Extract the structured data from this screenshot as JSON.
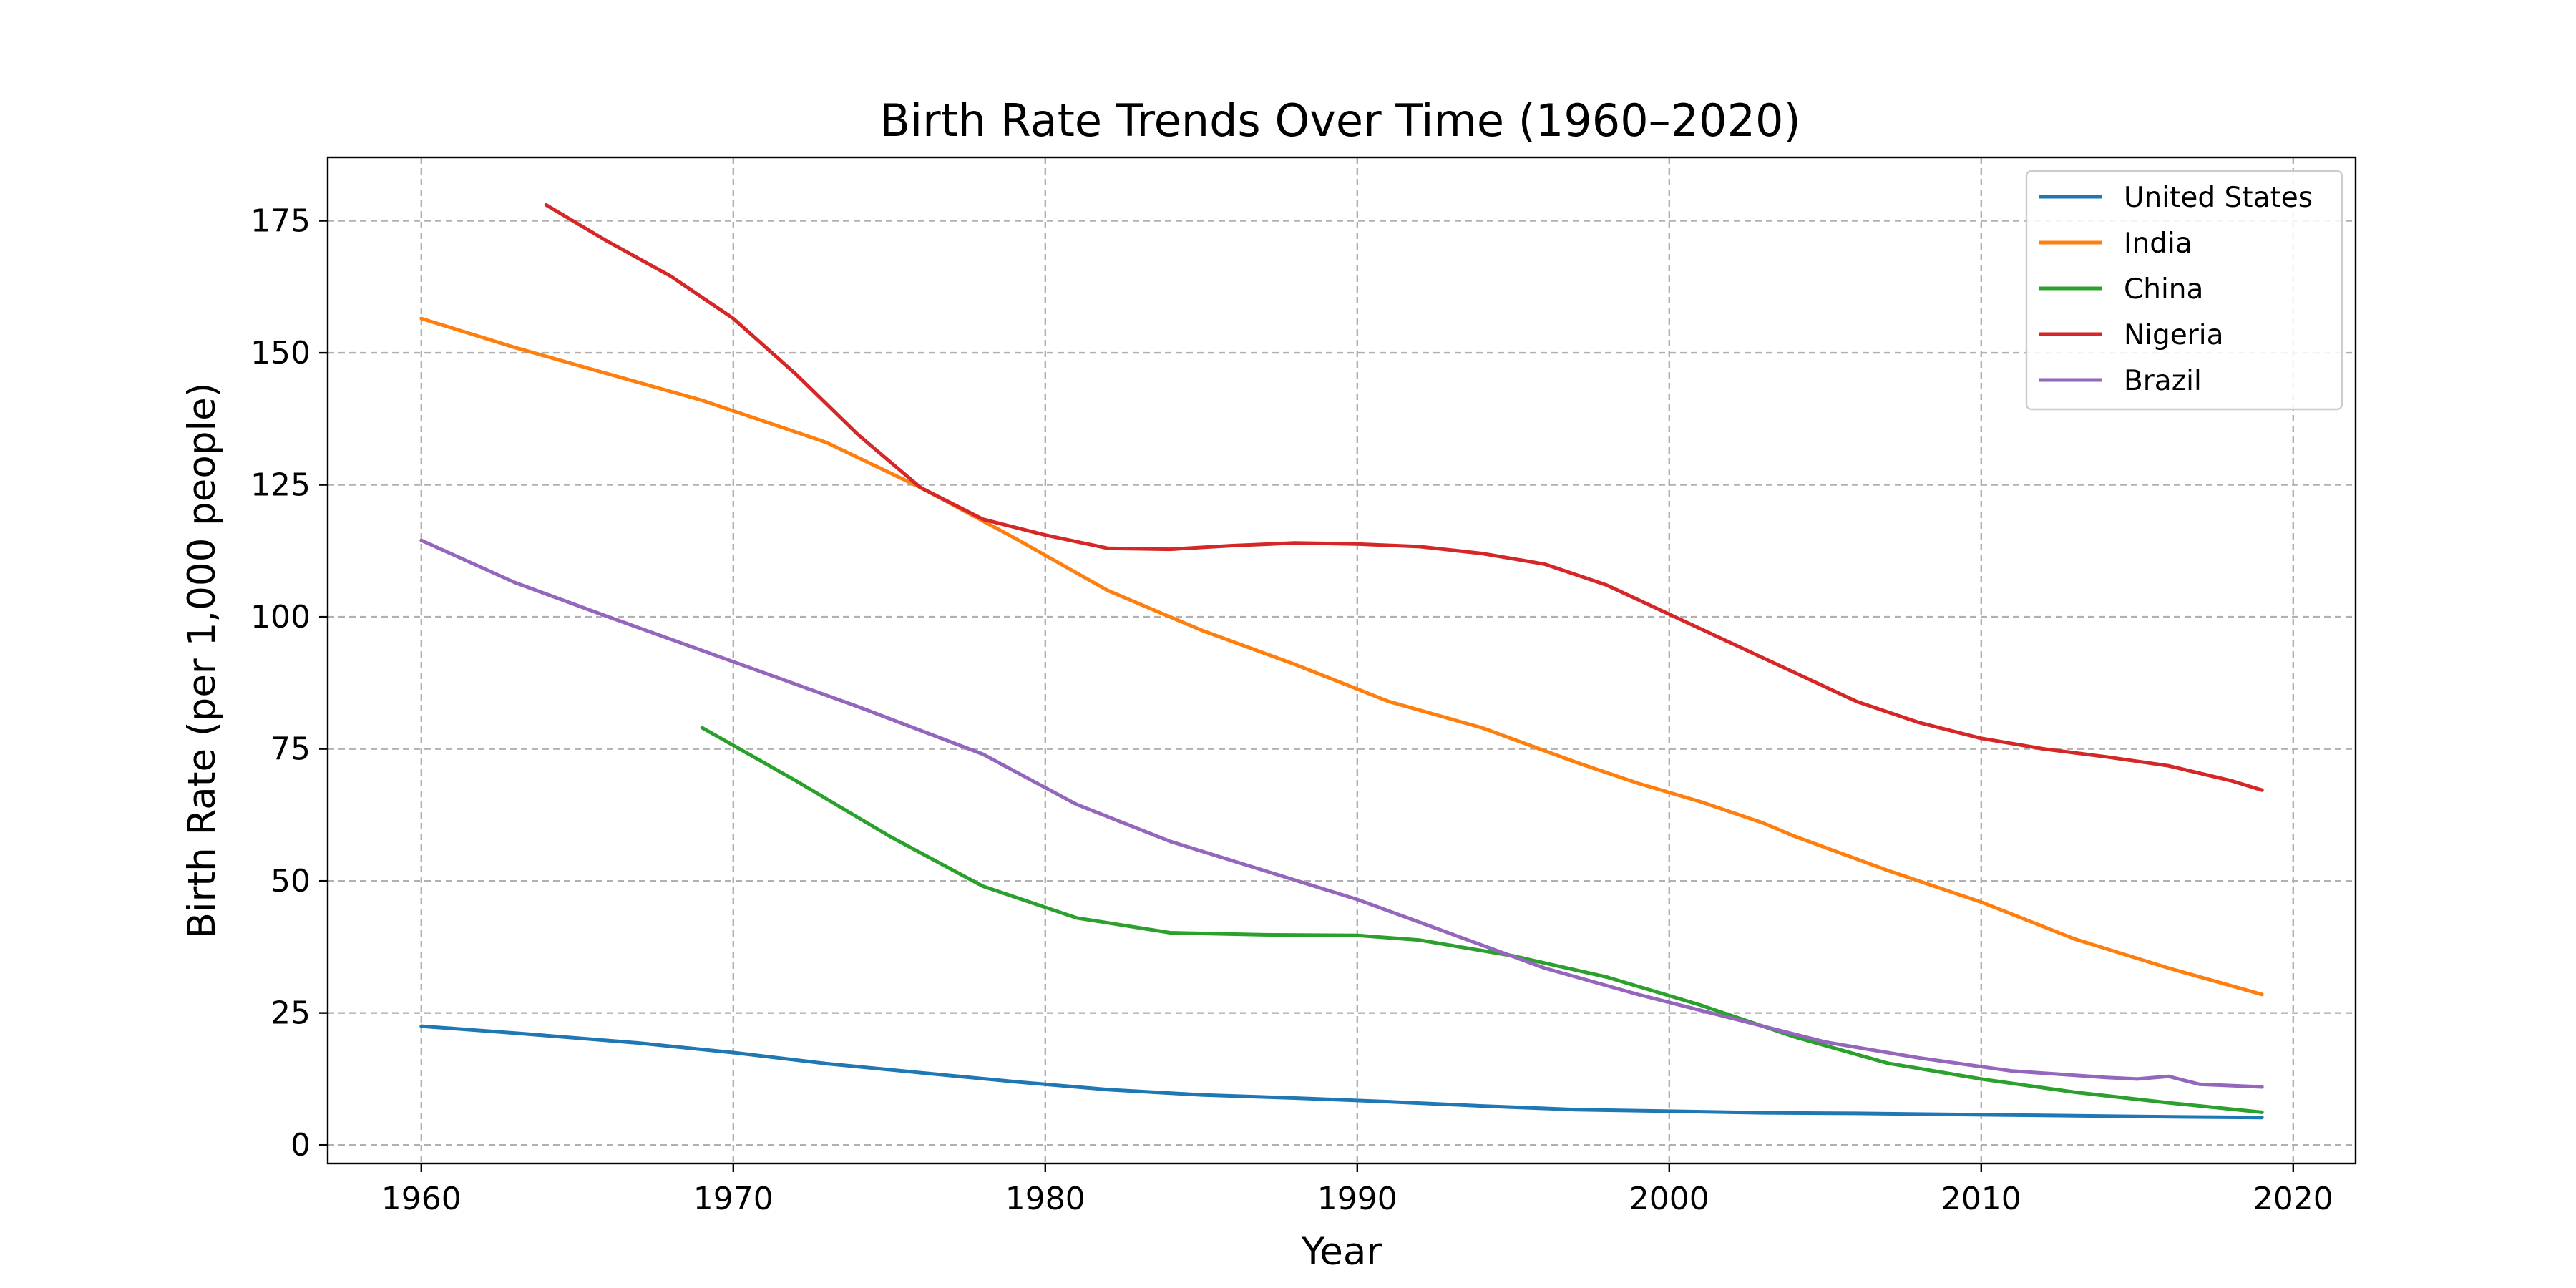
{
  "chart_data": {
    "type": "line",
    "title": "Birth Rate Trends Over Time (1960–2020)",
    "xlabel": "Year",
    "ylabel": "Birth Rate (per 1,000 people)",
    "xlim": [
      1957,
      2022
    ],
    "ylim": [
      -3.5,
      187
    ],
    "xticks": [
      1960,
      1970,
      1980,
      1990,
      2000,
      2010,
      2020
    ],
    "yticks": [
      0,
      25,
      50,
      75,
      100,
      125,
      150,
      175
    ],
    "grid": true,
    "legend_position": "top-right",
    "series": [
      {
        "name": "United States",
        "color": "#1f77b4",
        "points": [
          [
            1960,
            22.5
          ],
          [
            1963,
            21.2
          ],
          [
            1967,
            19.3
          ],
          [
            1970,
            17.5
          ],
          [
            1973,
            15.4
          ],
          [
            1976,
            13.7
          ],
          [
            1979,
            12.0
          ],
          [
            1982,
            10.5
          ],
          [
            1985,
            9.5
          ],
          [
            1988,
            8.9
          ],
          [
            1991,
            8.2
          ],
          [
            1994,
            7.4
          ],
          [
            1997,
            6.7
          ],
          [
            2000,
            6.4
          ],
          [
            2003,
            6.1
          ],
          [
            2006,
            6.0
          ],
          [
            2009,
            5.8
          ],
          [
            2012,
            5.6
          ],
          [
            2015,
            5.4
          ],
          [
            2019,
            5.2
          ]
        ]
      },
      {
        "name": "India",
        "color": "#ff7f0e",
        "points": [
          [
            1960,
            156.5
          ],
          [
            1963,
            151.0
          ],
          [
            1966,
            146.0
          ],
          [
            1969,
            141.0
          ],
          [
            1972,
            135.0
          ],
          [
            1973,
            133.0
          ],
          [
            1976,
            124.5
          ],
          [
            1979,
            115.0
          ],
          [
            1982,
            105.0
          ],
          [
            1985,
            97.5
          ],
          [
            1988,
            91.0
          ],
          [
            1991,
            84.0
          ],
          [
            1994,
            79.0
          ],
          [
            1997,
            72.5
          ],
          [
            1999,
            68.5
          ],
          [
            2001,
            65.0
          ],
          [
            2003,
            61.0
          ],
          [
            2004,
            58.5
          ],
          [
            2007,
            52.0
          ],
          [
            2010,
            46.0
          ],
          [
            2013,
            39.0
          ],
          [
            2016,
            33.5
          ],
          [
            2019,
            28.5
          ]
        ]
      },
      {
        "name": "China",
        "color": "#2ca02c",
        "points": [
          [
            1969,
            79.0
          ],
          [
            1972,
            69.0
          ],
          [
            1975,
            58.5
          ],
          [
            1978,
            49.0
          ],
          [
            1981,
            43.0
          ],
          [
            1984,
            40.2
          ],
          [
            1987,
            39.8
          ],
          [
            1990,
            39.7
          ],
          [
            1992,
            38.8
          ],
          [
            1995,
            35.8
          ],
          [
            1998,
            31.8
          ],
          [
            2001,
            26.5
          ],
          [
            2004,
            20.5
          ],
          [
            2007,
            15.5
          ],
          [
            2010,
            12.5
          ],
          [
            2013,
            10.0
          ],
          [
            2016,
            8.0
          ],
          [
            2019,
            6.2
          ]
        ]
      },
      {
        "name": "Nigeria",
        "color": "#d62728",
        "points": [
          [
            1964,
            178.0
          ],
          [
            1966,
            171.0
          ],
          [
            1968,
            164.5
          ],
          [
            1970,
            156.5
          ],
          [
            1972,
            146.0
          ],
          [
            1974,
            134.5
          ],
          [
            1976,
            124.5
          ],
          [
            1978,
            118.5
          ],
          [
            1980,
            115.5
          ],
          [
            1982,
            113.0
          ],
          [
            1984,
            112.8
          ],
          [
            1986,
            113.5
          ],
          [
            1988,
            114.0
          ],
          [
            1990,
            113.8
          ],
          [
            1992,
            113.3
          ],
          [
            1994,
            112.0
          ],
          [
            1996,
            110.0
          ],
          [
            1998,
            106.0
          ],
          [
            2000,
            100.5
          ],
          [
            2002,
            95.0
          ],
          [
            2004,
            89.5
          ],
          [
            2006,
            84.0
          ],
          [
            2008,
            80.0
          ],
          [
            2010,
            77.0
          ],
          [
            2012,
            75.0
          ],
          [
            2014,
            73.5
          ],
          [
            2016,
            71.8
          ],
          [
            2018,
            69.0
          ],
          [
            2019,
            67.2
          ]
        ]
      },
      {
        "name": "Brazil",
        "color": "#9467bd",
        "points": [
          [
            1960,
            114.5
          ],
          [
            1963,
            106.5
          ],
          [
            1966,
            100.0
          ],
          [
            1970,
            91.5
          ],
          [
            1974,
            83.0
          ],
          [
            1978,
            74.0
          ],
          [
            1981,
            64.5
          ],
          [
            1984,
            57.5
          ],
          [
            1987,
            52.0
          ],
          [
            1990,
            46.5
          ],
          [
            1993,
            40.0
          ],
          [
            1996,
            33.5
          ],
          [
            1999,
            28.5
          ],
          [
            2002,
            24.0
          ],
          [
            2005,
            19.5
          ],
          [
            2008,
            16.5
          ],
          [
            2011,
            14.0
          ],
          [
            2014,
            12.8
          ],
          [
            2015,
            12.5
          ],
          [
            2016,
            13.0
          ],
          [
            2017,
            11.5
          ],
          [
            2019,
            11.0
          ]
        ]
      }
    ]
  }
}
